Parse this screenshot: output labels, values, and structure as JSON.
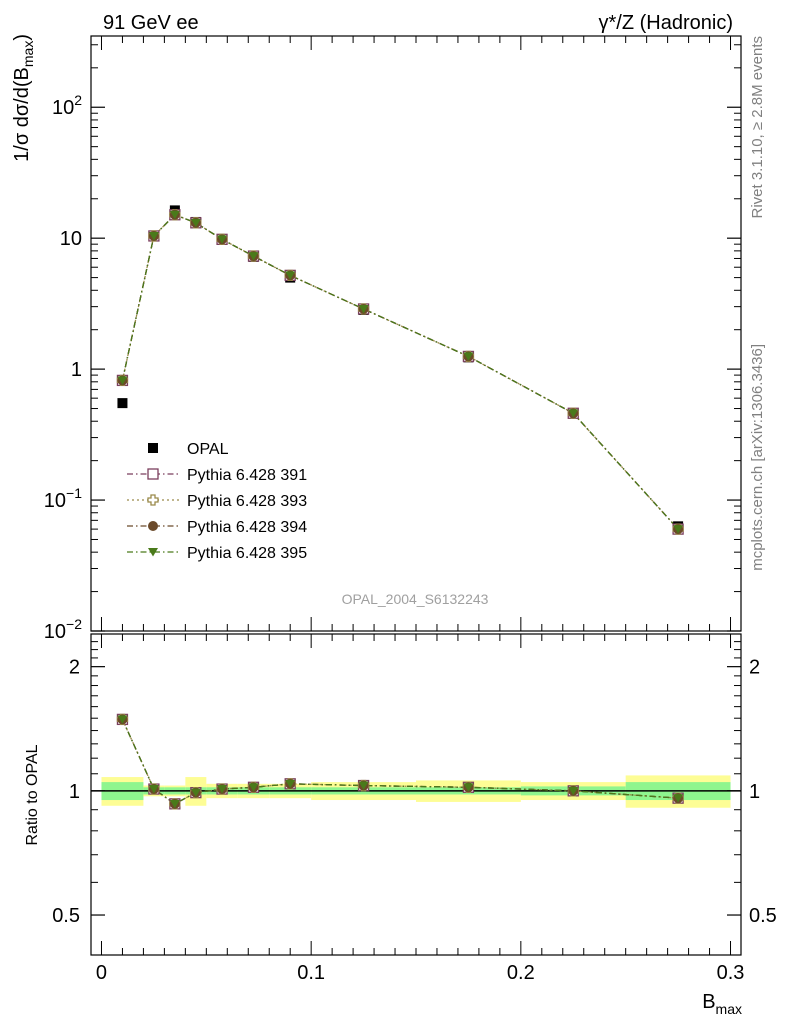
{
  "header": {
    "left": "91 GeV ee",
    "right": "γ*/Z (Hadronic)"
  },
  "side_labels": {
    "rivet": "Rivet 3.1.10, ≥ 2.8M events",
    "mcplots": "mcplots.cern.ch [arXiv:1306.3436]"
  },
  "watermark": "OPAL_2004_S6132243",
  "chart_data": [
    {
      "type": "scatter",
      "panel": "main",
      "ylabel": "1/σ dσ/d(B_max)",
      "yscale": "log",
      "ylim": [
        0.01,
        350
      ],
      "xlim": [
        -0.005,
        0.305
      ],
      "y_ticks": [
        {
          "value": 0.01,
          "label": "10⁻²"
        },
        {
          "value": 0.1,
          "label": "10⁻¹"
        },
        {
          "value": 1,
          "label": "1"
        },
        {
          "value": 10,
          "label": "10"
        },
        {
          "value": 100,
          "label": "10²"
        }
      ],
      "legend_position": "middle-left",
      "x": [
        0.01,
        0.025,
        0.035,
        0.045,
        0.0575,
        0.0725,
        0.09,
        0.125,
        0.175,
        0.225,
        0.275
      ],
      "series": [
        {
          "name": "OPAL",
          "marker": "filled-square",
          "color": "#000000",
          "values": [
            0.55,
            10.3,
            16.3,
            13.3,
            9.7,
            7.2,
            5.0,
            2.83,
            1.23,
            0.46,
            0.063
          ]
        },
        {
          "name": "Pythia 6.428 391",
          "marker": "open-square",
          "color": "#7b3f5e",
          "line": "dashdot",
          "values": [
            0.82,
            10.4,
            15.1,
            13.1,
            9.8,
            7.3,
            5.2,
            2.88,
            1.25,
            0.46,
            0.06
          ]
        },
        {
          "name": "Pythia 6.428 393",
          "marker": "open-cross",
          "color": "#9a8a4a",
          "line": "dotted",
          "values": [
            0.82,
            10.4,
            15.1,
            13.1,
            9.8,
            7.3,
            5.2,
            2.88,
            1.25,
            0.46,
            0.06
          ]
        },
        {
          "name": "Pythia 6.428 394",
          "marker": "filled-circle",
          "color": "#6b4a2a",
          "line": "dashdot",
          "values": [
            0.82,
            10.4,
            15.1,
            13.1,
            9.8,
            7.3,
            5.2,
            2.88,
            1.25,
            0.46,
            0.06
          ]
        },
        {
          "name": "Pythia 6.428 395",
          "marker": "filled-triangle-down",
          "color": "#4a7a1a",
          "line": "dashdot",
          "values": [
            0.82,
            10.4,
            15.1,
            13.1,
            9.8,
            7.3,
            5.2,
            2.88,
            1.25,
            0.46,
            0.06
          ]
        }
      ]
    },
    {
      "type": "scatter",
      "panel": "ratio",
      "ylabel": "Ratio to OPAL",
      "xlabel": "B_max",
      "yscale": "log",
      "ylim": [
        0.4,
        2.4
      ],
      "xlim": [
        -0.005,
        0.305
      ],
      "x_ticks": [
        {
          "value": 0,
          "label": "0"
        },
        {
          "value": 0.1,
          "label": "0.1"
        },
        {
          "value": 0.2,
          "label": "0.2"
        },
        {
          "value": 0.3,
          "label": "0.3"
        }
      ],
      "y_ticks": [
        {
          "value": 0.5,
          "label": "0.5"
        },
        {
          "value": 1,
          "label": "1"
        },
        {
          "value": 2,
          "label": "2"
        }
      ],
      "bands": {
        "bin_edges": [
          0,
          0.02,
          0.03,
          0.04,
          0.05,
          0.065,
          0.08,
          0.1,
          0.15,
          0.2,
          0.25,
          0.3
        ],
        "inner": [
          0.05,
          0.02,
          0.02,
          0.02,
          0.02,
          0.02,
          0.02,
          0.02,
          0.02,
          0.025,
          0.05
        ],
        "outer": [
          0.08,
          0.03,
          0.03,
          0.08,
          0.04,
          0.04,
          0.04,
          0.05,
          0.06,
          0.05,
          0.09
        ],
        "inner_color": "#8ef58e",
        "outer_color": "#fdfd95"
      },
      "x": [
        0.01,
        0.025,
        0.035,
        0.045,
        0.0575,
        0.0725,
        0.09,
        0.125,
        0.175,
        0.225,
        0.275
      ],
      "series": [
        {
          "name": "Pythia 6.428 391",
          "values": [
            1.49,
            1.01,
            0.93,
            0.99,
            1.01,
            1.02,
            1.04,
            1.03,
            1.02,
            1.0,
            0.96
          ]
        },
        {
          "name": "Pythia 6.428 393",
          "values": [
            1.49,
            1.01,
            0.93,
            0.99,
            1.01,
            1.02,
            1.04,
            1.03,
            1.02,
            1.0,
            0.96
          ]
        },
        {
          "name": "Pythia 6.428 394",
          "values": [
            1.49,
            1.01,
            0.93,
            0.99,
            1.01,
            1.02,
            1.04,
            1.03,
            1.02,
            1.0,
            0.96
          ]
        },
        {
          "name": "Pythia 6.428 395",
          "values": [
            1.49,
            1.01,
            0.93,
            0.99,
            1.01,
            1.02,
            1.04,
            1.03,
            1.02,
            1.0,
            0.96
          ]
        }
      ]
    }
  ]
}
